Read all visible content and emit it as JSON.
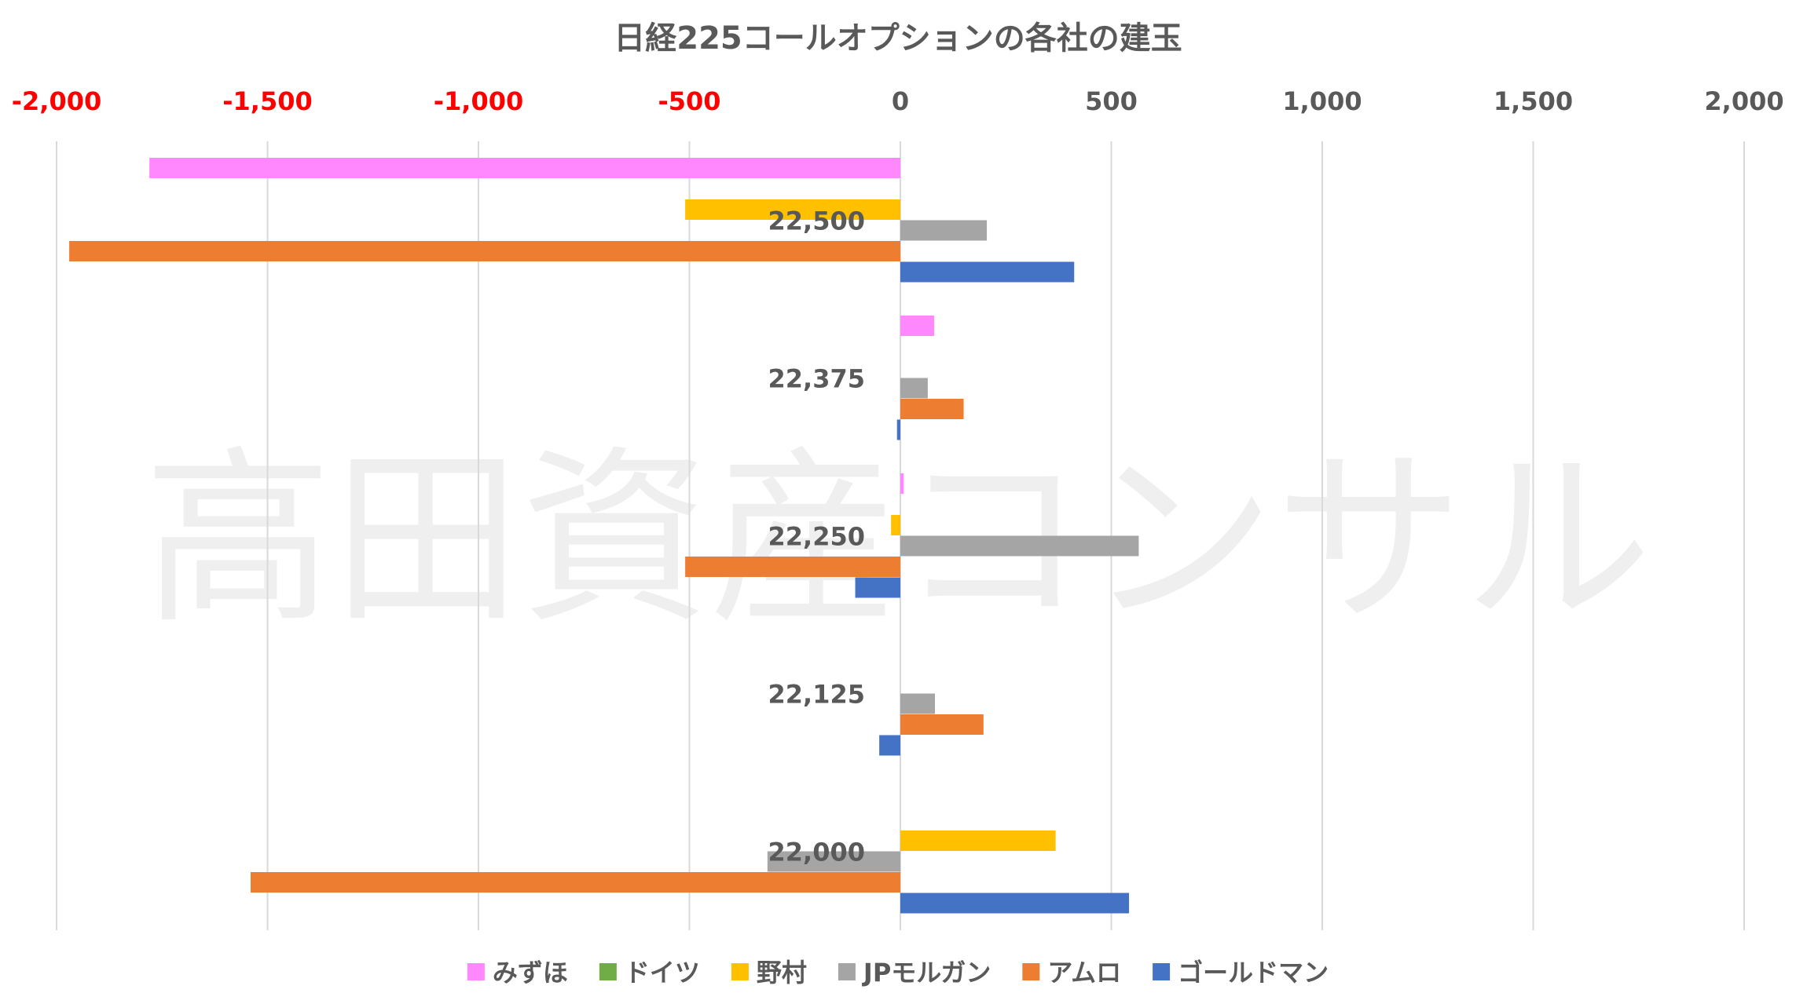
{
  "chart_data": {
    "type": "bar",
    "orientation": "horizontal",
    "title": "日経225コールオプションの各社の建玉",
    "watermark": "高田資産コンサル",
    "xlim": [
      -2000,
      2000
    ],
    "x_ticks": [
      {
        "value": -2000,
        "label": "-2,000"
      },
      {
        "value": -1500,
        "label": "-1,500"
      },
      {
        "value": -1000,
        "label": "-1,000"
      },
      {
        "value": -500,
        "label": "-500"
      },
      {
        "value": 0,
        "label": "0"
      },
      {
        "value": 500,
        "label": "500"
      },
      {
        "value": 1000,
        "label": "1,000"
      },
      {
        "value": 1500,
        "label": "1,500"
      },
      {
        "value": 2000,
        "label": "2,000"
      }
    ],
    "negative_tick_color": "#ff0000",
    "grid": true,
    "legend_position": "bottom",
    "categories": [
      "22,500",
      "22,375",
      "22,250",
      "22,125",
      "22,000"
    ],
    "series": [
      {
        "name": "みずほ",
        "color": "#ff88ff",
        "values": [
          -1780,
          80,
          8,
          0,
          0
        ]
      },
      {
        "name": "ドイツ",
        "color": "#70ad47",
        "values": [
          0,
          0,
          0,
          0,
          0
        ]
      },
      {
        "name": "野村",
        "color": "#ffc000",
        "values": [
          -510,
          0,
          -22,
          0,
          368
        ]
      },
      {
        "name": "JPモルガン",
        "color": "#a5a5a5",
        "values": [
          205,
          65,
          565,
          82,
          -315
        ]
      },
      {
        "name": "アムロ",
        "color": "#ed7d31",
        "values": [
          -1970,
          150,
          -510,
          197,
          -1540
        ]
      },
      {
        "name": "ゴールドマン",
        "color": "#4472c4",
        "values": [
          412,
          -8,
          -107,
          -50,
          542
        ]
      }
    ]
  }
}
